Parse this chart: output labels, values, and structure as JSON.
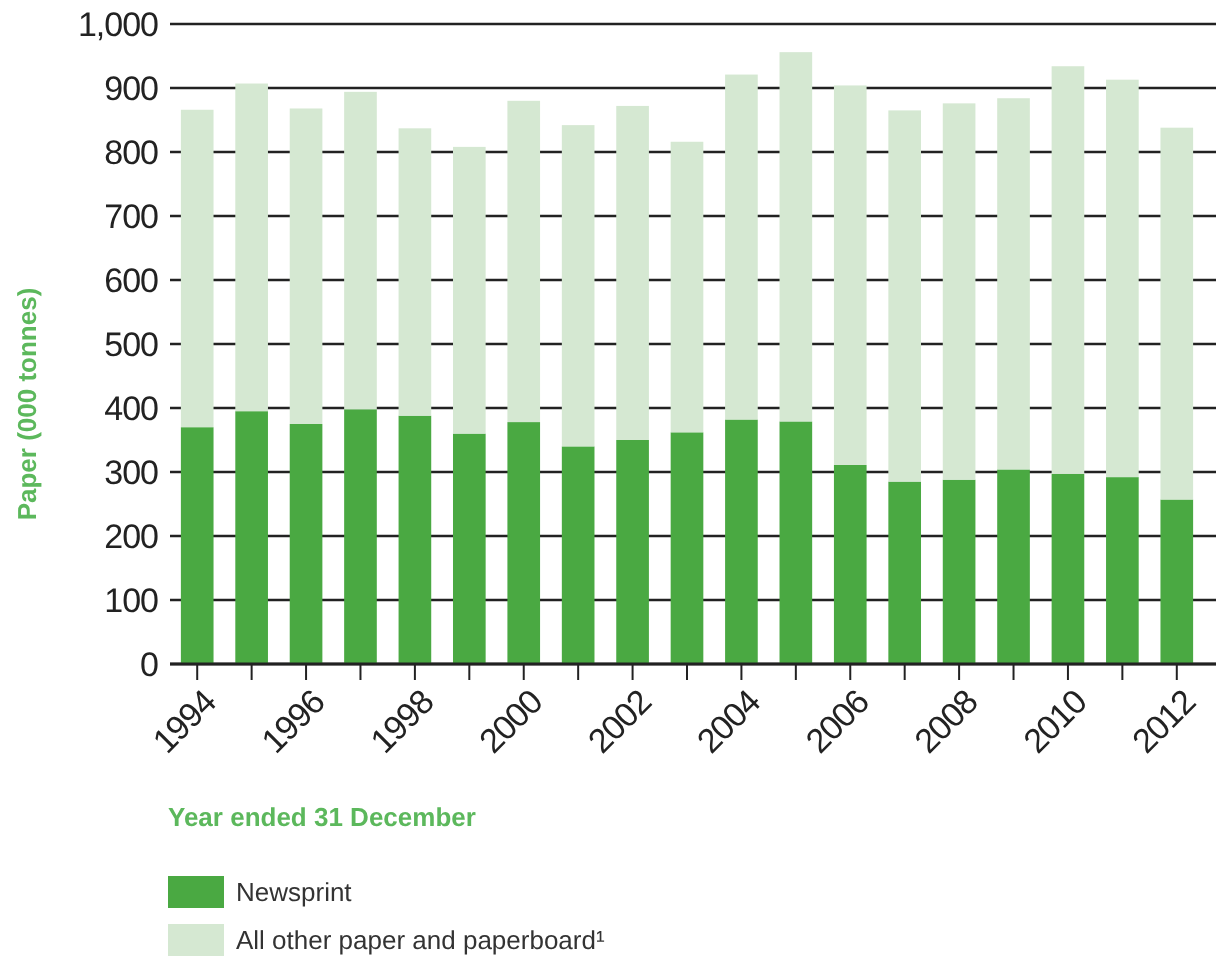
{
  "chart_data": {
    "type": "bar",
    "stacked": true,
    "xlabel": "Year ended 31 December",
    "ylabel": "Paper (000 tonnes)",
    "categories": [
      "1994",
      null,
      "1996",
      null,
      "1998",
      null,
      "2000",
      null,
      "2002",
      null,
      "2004",
      null,
      "2006",
      null,
      "2008",
      null,
      "2010",
      null,
      "2012"
    ],
    "series": [
      {
        "name": "Newsprint",
        "color": "#4aa942",
        "values": [
          370,
          395,
          375,
          398,
          388,
          360,
          378,
          340,
          350,
          362,
          382,
          379,
          311,
          285,
          288,
          304,
          297,
          292,
          257
        ]
      },
      {
        "name": "All other paper and paperboard¹",
        "color": "#d5e8d2",
        "values": [
          496,
          512,
          493,
          496,
          449,
          448,
          502,
          502,
          522,
          454,
          539,
          577,
          593,
          580,
          588,
          580,
          637,
          621,
          581
        ]
      }
    ],
    "ylim": [
      0,
      1000
    ],
    "yticks": [
      0,
      100,
      200,
      300,
      400,
      500,
      600,
      700,
      800,
      900,
      {
        "value": 1000,
        "label": "1,000"
      }
    ],
    "grid": "y",
    "legend": "bottom"
  }
}
